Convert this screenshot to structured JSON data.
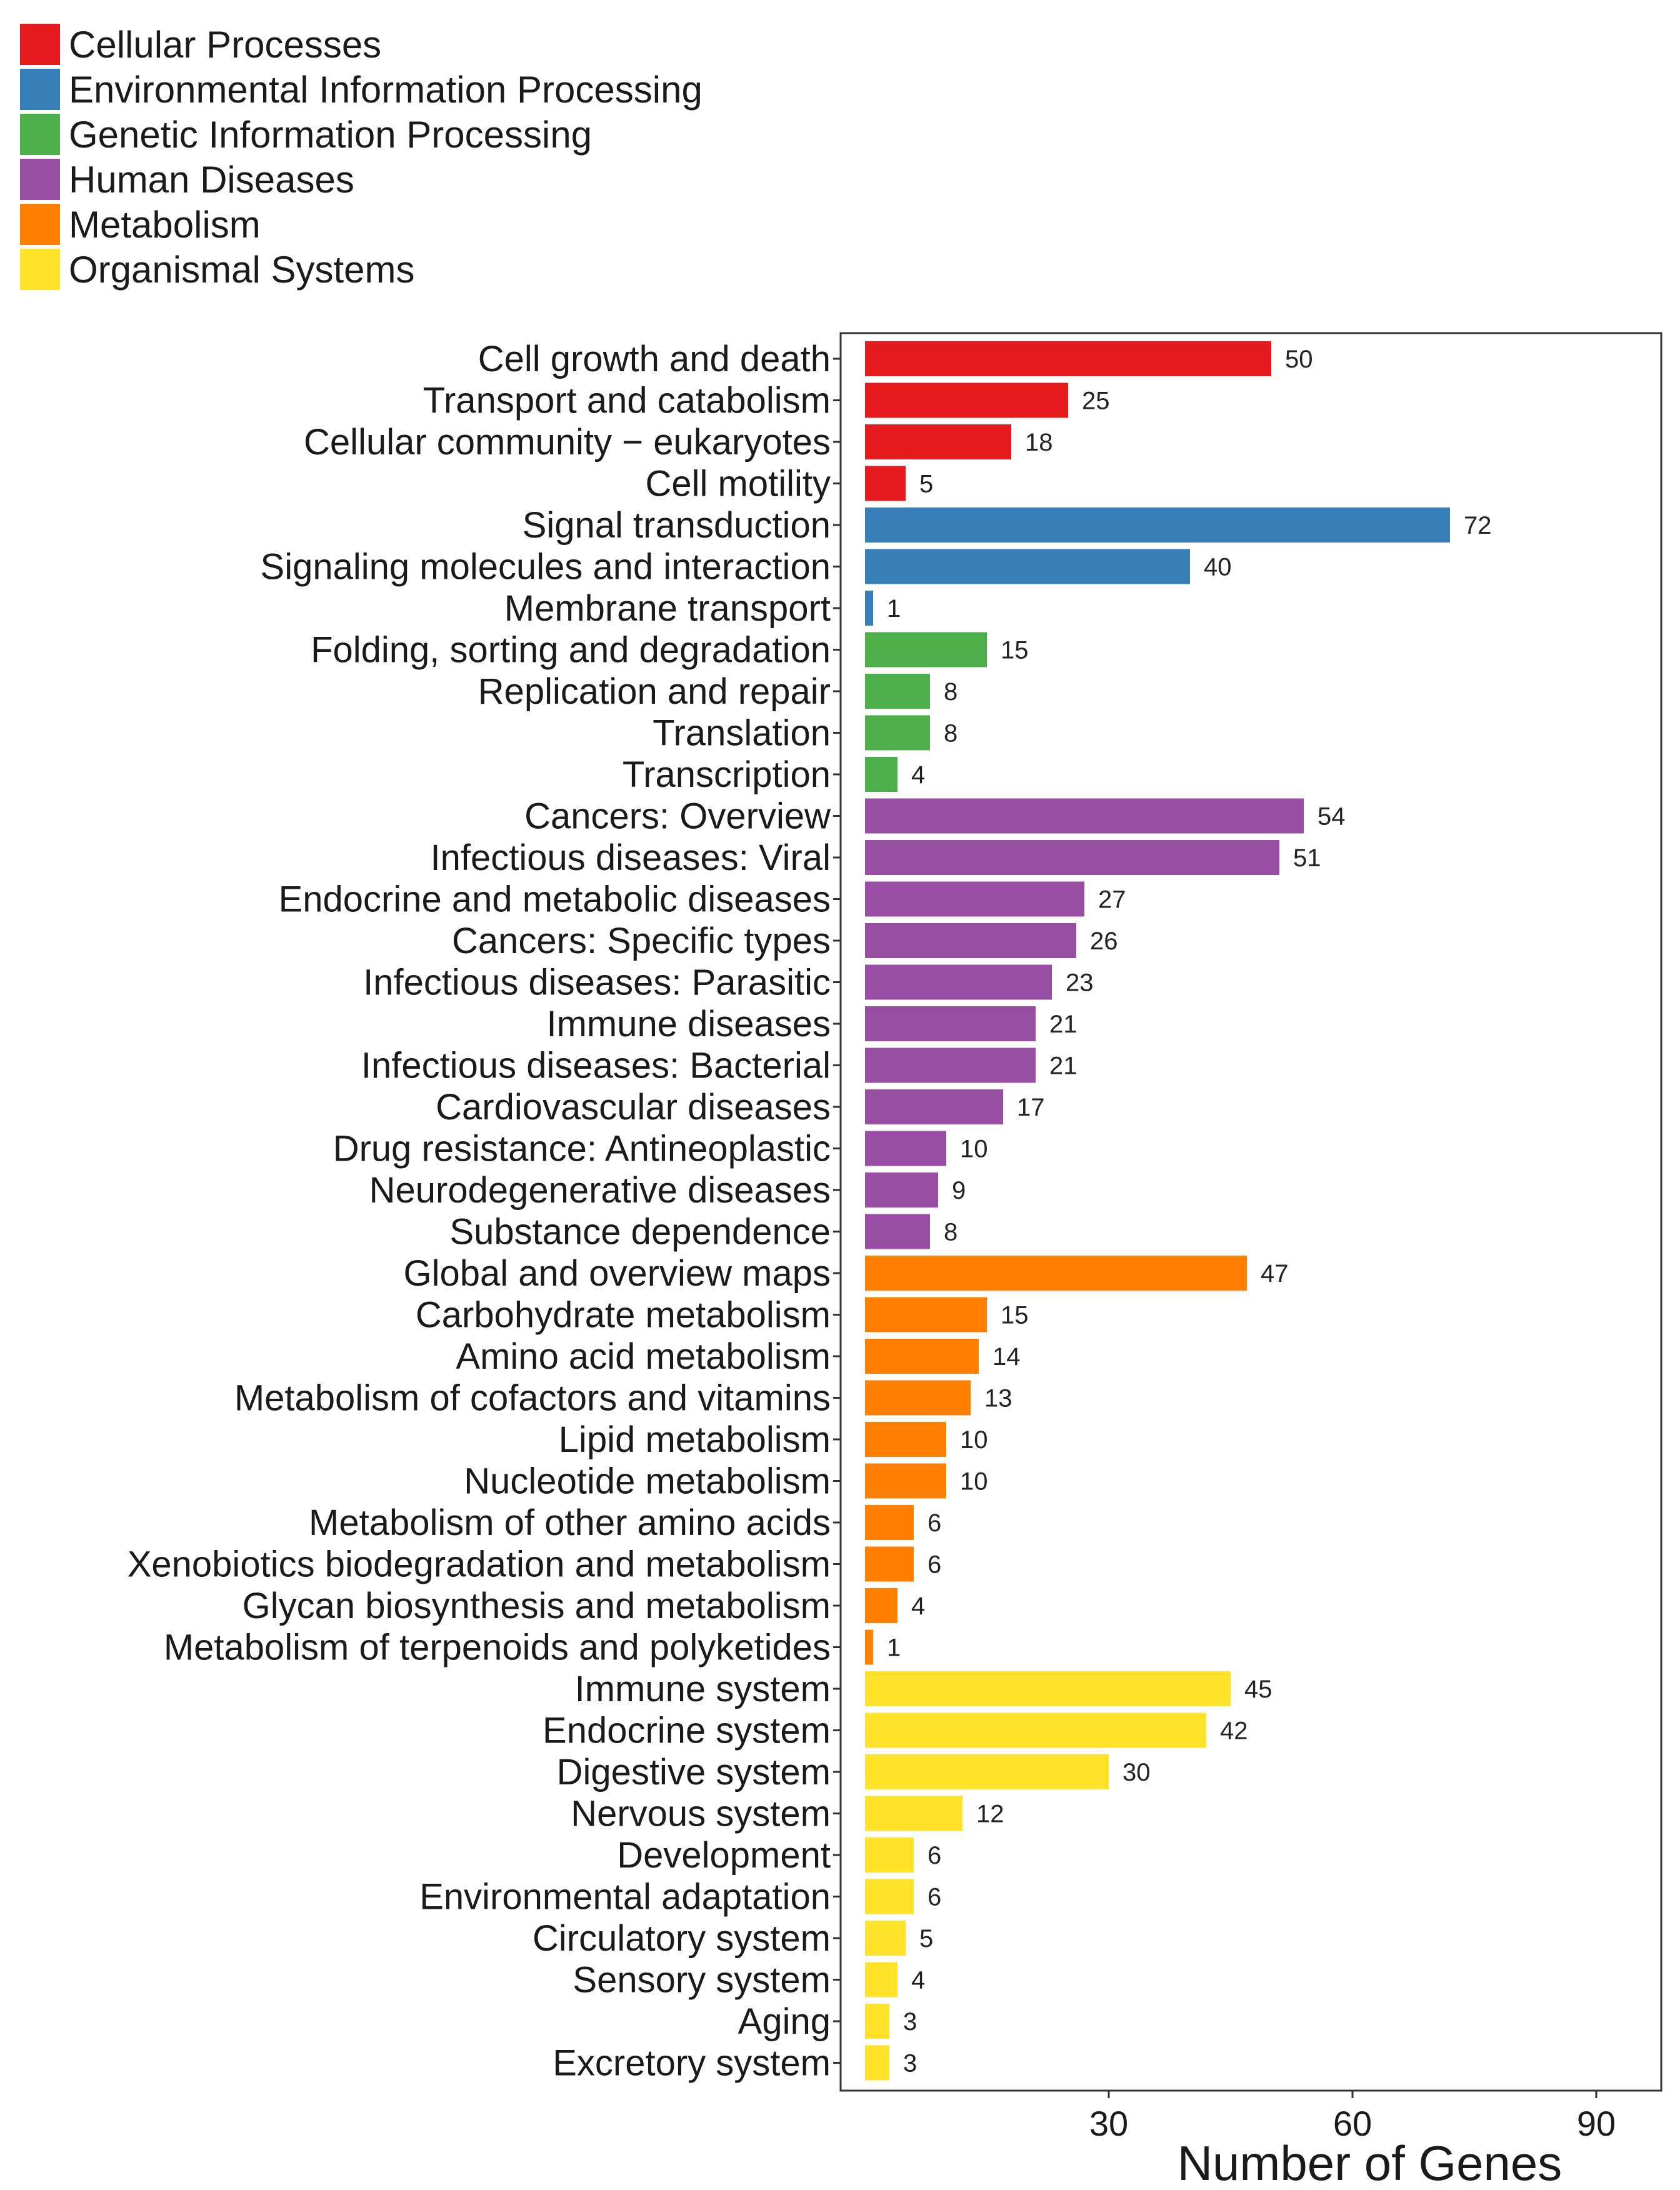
{
  "chart_data": {
    "type": "bar",
    "orientation": "horizontal",
    "title": "",
    "xlabel": "Number of Genes",
    "ylabel": "",
    "x_ticks": [
      30,
      60,
      90
    ],
    "xlim": [
      -3,
      98
    ],
    "legend": {
      "position": "top-left",
      "entries": [
        {
          "name": "Cellular Processes",
          "color": "#E41A1C"
        },
        {
          "name": "Environmental Information Processing",
          "color": "#377EB8"
        },
        {
          "name": "Genetic Information Processing",
          "color": "#4DAF4A"
        },
        {
          "name": "Human Diseases",
          "color": "#984EA3"
        },
        {
          "name": "Metabolism",
          "color": "#FF7F00"
        },
        {
          "name": "Organismal Systems",
          "color": "#FFE22A"
        }
      ]
    },
    "categories": [
      "Cell growth and death",
      "Transport and catabolism",
      "Cellular community − eukaryotes",
      "Cell motility",
      "Signal transduction",
      "Signaling molecules and interaction",
      "Membrane transport",
      "Folding, sorting and degradation",
      "Replication and repair",
      "Translation",
      "Transcription",
      "Cancers: Overview",
      "Infectious diseases: Viral",
      "Endocrine and metabolic diseases",
      "Cancers: Specific types",
      "Infectious diseases: Parasitic",
      "Immune diseases",
      "Infectious diseases: Bacterial",
      "Cardiovascular diseases",
      "Drug resistance: Antineoplastic",
      "Neurodegenerative diseases",
      "Substance dependence",
      "Global and overview maps",
      "Carbohydrate metabolism",
      "Amino acid metabolism",
      "Metabolism of cofactors and vitamins",
      "Lipid metabolism",
      "Nucleotide metabolism",
      "Metabolism of other amino acids",
      "Xenobiotics biodegradation and metabolism",
      "Glycan biosynthesis and metabolism",
      "Metabolism of terpenoids and polyketides",
      "Immune system",
      "Endocrine system",
      "Digestive system",
      "Nervous system",
      "Development",
      "Environmental adaptation",
      "Circulatory system",
      "Sensory system",
      "Aging",
      "Excretory system"
    ],
    "values": [
      50,
      25,
      18,
      5,
      72,
      40,
      1,
      15,
      8,
      8,
      4,
      54,
      51,
      27,
      26,
      23,
      21,
      21,
      17,
      10,
      9,
      8,
      47,
      15,
      14,
      13,
      10,
      10,
      6,
      6,
      4,
      1,
      45,
      42,
      30,
      12,
      6,
      6,
      5,
      4,
      3,
      3
    ],
    "groups": [
      "Cellular Processes",
      "Cellular Processes",
      "Cellular Processes",
      "Cellular Processes",
      "Environmental Information Processing",
      "Environmental Information Processing",
      "Environmental Information Processing",
      "Genetic Information Processing",
      "Genetic Information Processing",
      "Genetic Information Processing",
      "Genetic Information Processing",
      "Human Diseases",
      "Human Diseases",
      "Human Diseases",
      "Human Diseases",
      "Human Diseases",
      "Human Diseases",
      "Human Diseases",
      "Human Diseases",
      "Human Diseases",
      "Human Diseases",
      "Human Diseases",
      "Metabolism",
      "Metabolism",
      "Metabolism",
      "Metabolism",
      "Metabolism",
      "Metabolism",
      "Metabolism",
      "Metabolism",
      "Metabolism",
      "Metabolism",
      "Organismal Systems",
      "Organismal Systems",
      "Organismal Systems",
      "Organismal Systems",
      "Organismal Systems",
      "Organismal Systems",
      "Organismal Systems",
      "Organismal Systems",
      "Organismal Systems",
      "Organismal Systems"
    ],
    "value_labels": true,
    "grid": false
  }
}
